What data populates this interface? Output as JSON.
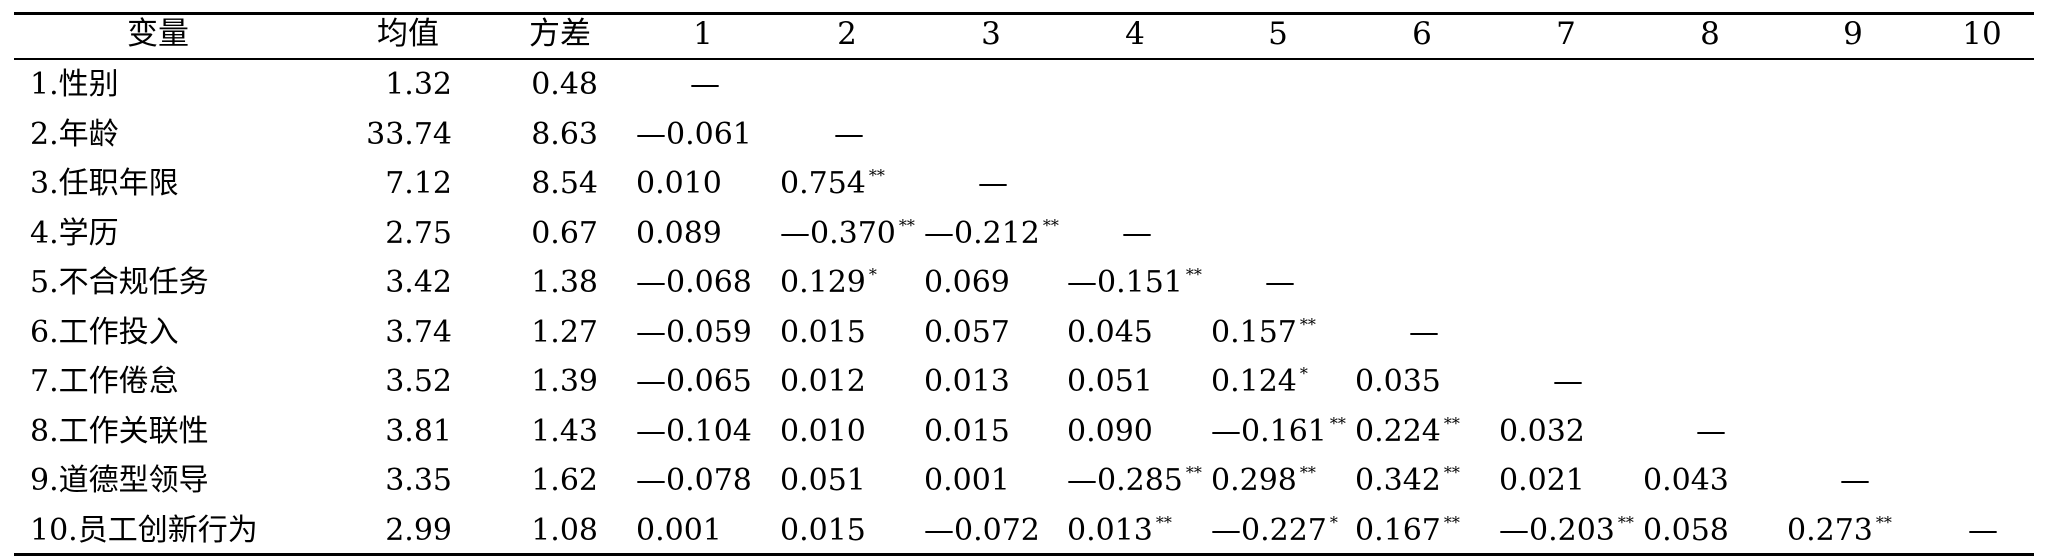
{
  "table": {
    "headers": [
      "变量",
      "均值",
      "方差",
      "1",
      "2",
      "3",
      "4",
      "5",
      "6",
      "7",
      "8",
      "9",
      "10"
    ],
    "rows": [
      {
        "variable": "1.性别",
        "mean": "1.32",
        "variance": "0.48",
        "corr": [
          {
            "v": "—",
            "s": ""
          }
        ]
      },
      {
        "variable": "2.年龄",
        "mean": "33.74",
        "variance": "8.63",
        "corr": [
          {
            "v": "—0.061",
            "s": ""
          },
          {
            "v": "—",
            "s": ""
          }
        ]
      },
      {
        "variable": "3.任职年限",
        "mean": "7.12",
        "variance": "8.54",
        "corr": [
          {
            "v": "0.010",
            "s": ""
          },
          {
            "v": "0.754",
            "s": "**"
          },
          {
            "v": "—",
            "s": ""
          }
        ]
      },
      {
        "variable": "4.学历",
        "mean": "2.75",
        "variance": "0.67",
        "corr": [
          {
            "v": "0.089",
            "s": ""
          },
          {
            "v": "—0.370",
            "s": "**"
          },
          {
            "v": "—0.212",
            "s": "**"
          },
          {
            "v": "—",
            "s": ""
          }
        ]
      },
      {
        "variable": "5.不合规任务",
        "mean": "3.42",
        "variance": "1.38",
        "corr": [
          {
            "v": "—0.068",
            "s": ""
          },
          {
            "v": "0.129",
            "s": "*"
          },
          {
            "v": "0.069",
            "s": ""
          },
          {
            "v": "—0.151",
            "s": "**"
          },
          {
            "v": "—",
            "s": ""
          }
        ]
      },
      {
        "variable": "6.工作投入",
        "mean": "3.74",
        "variance": "1.27",
        "corr": [
          {
            "v": "—0.059",
            "s": ""
          },
          {
            "v": "0.015",
            "s": ""
          },
          {
            "v": "0.057",
            "s": ""
          },
          {
            "v": "0.045",
            "s": ""
          },
          {
            "v": "0.157",
            "s": "**"
          },
          {
            "v": "—",
            "s": ""
          }
        ]
      },
      {
        "variable": "7.工作倦怠",
        "mean": "3.52",
        "variance": "1.39",
        "corr": [
          {
            "v": "—0.065",
            "s": ""
          },
          {
            "v": "0.012",
            "s": ""
          },
          {
            "v": "0.013",
            "s": ""
          },
          {
            "v": "0.051",
            "s": ""
          },
          {
            "v": "0.124",
            "s": "*"
          },
          {
            "v": "0.035",
            "s": ""
          },
          {
            "v": "—",
            "s": ""
          }
        ]
      },
      {
        "variable": "8.工作关联性",
        "mean": "3.81",
        "variance": "1.43",
        "corr": [
          {
            "v": "—0.104",
            "s": ""
          },
          {
            "v": "0.010",
            "s": ""
          },
          {
            "v": "0.015",
            "s": ""
          },
          {
            "v": "0.090",
            "s": ""
          },
          {
            "v": "—0.161",
            "s": "**"
          },
          {
            "v": "0.224",
            "s": "**"
          },
          {
            "v": "0.032",
            "s": ""
          },
          {
            "v": "—",
            "s": ""
          }
        ]
      },
      {
        "variable": "9.道德型领导",
        "mean": "3.35",
        "variance": "1.62",
        "corr": [
          {
            "v": "—0.078",
            "s": ""
          },
          {
            "v": "0.051",
            "s": ""
          },
          {
            "v": "0.001",
            "s": ""
          },
          {
            "v": "—0.285",
            "s": "**"
          },
          {
            "v": "0.298",
            "s": "**"
          },
          {
            "v": "0.342",
            "s": "**"
          },
          {
            "v": "0.021",
            "s": ""
          },
          {
            "v": "0.043",
            "s": ""
          },
          {
            "v": "—",
            "s": ""
          }
        ]
      },
      {
        "variable": "10.员工创新行为",
        "mean": "2.99",
        "variance": "1.08",
        "corr": [
          {
            "v": "0.001",
            "s": ""
          },
          {
            "v": "0.015",
            "s": ""
          },
          {
            "v": "—0.072",
            "s": ""
          },
          {
            "v": "0.013",
            "s": "**"
          },
          {
            "v": "—0.227",
            "s": "*"
          },
          {
            "v": "0.167",
            "s": "**"
          },
          {
            "v": "—0.203",
            "s": "**"
          },
          {
            "v": "0.058",
            "s": ""
          },
          {
            "v": "0.273",
            "s": "**"
          },
          {
            "v": "—",
            "s": ""
          }
        ]
      }
    ]
  }
}
